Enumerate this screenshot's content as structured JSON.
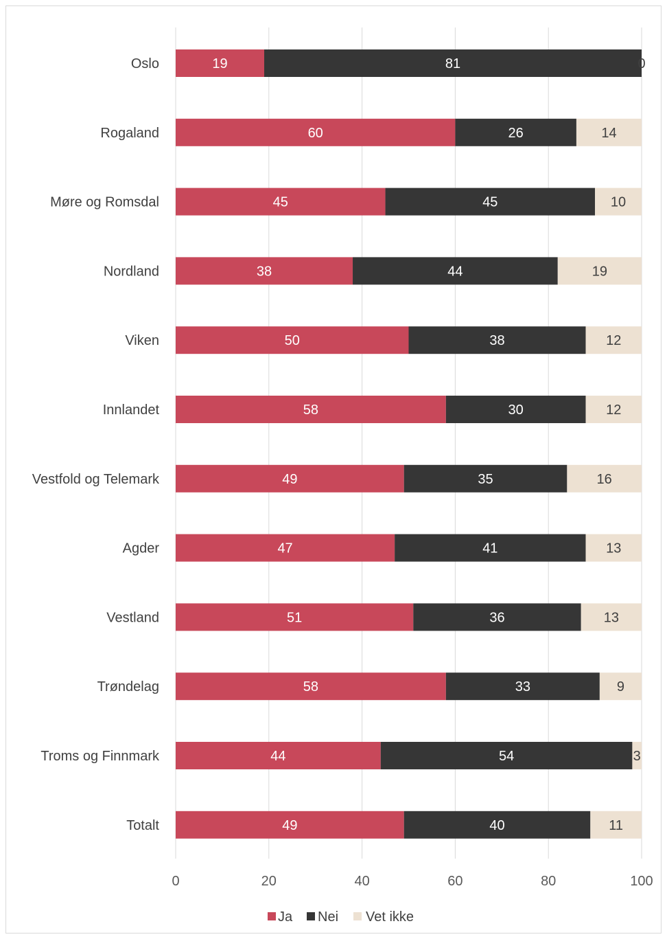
{
  "chart_data": {
    "type": "bar",
    "orientation": "horizontal",
    "stacked": true,
    "categories": [
      "Oslo",
      "Rogaland",
      "Møre og Romsdal",
      "Nordland",
      "Viken",
      "Innlandet",
      "Vestfold og Telemark",
      "Agder",
      "Vestland",
      "Trøndelag",
      "Troms og Finnmark",
      "Totalt"
    ],
    "series": [
      {
        "name": "Ja",
        "color": "#c8485a",
        "label_color": "#ffffff",
        "values": [
          19,
          60,
          45,
          38,
          50,
          58,
          49,
          47,
          51,
          58,
          44,
          49
        ]
      },
      {
        "name": "Nei",
        "color": "#363636",
        "label_color": "#ffffff",
        "values": [
          81,
          26,
          45,
          44,
          38,
          30,
          35,
          41,
          36,
          33,
          54,
          40
        ]
      },
      {
        "name": "Vet ikke",
        "color": "#ede1d2",
        "label_color": "#404040",
        "values": [
          0,
          14,
          10,
          19,
          12,
          12,
          16,
          13,
          13,
          9,
          3,
          11
        ]
      }
    ],
    "xlim": [
      0,
      100
    ],
    "x_ticks": [
      0,
      20,
      40,
      60,
      80,
      100
    ],
    "grid": "vertical",
    "legend_position": "bottom",
    "title": "",
    "xlabel": "",
    "ylabel": ""
  }
}
